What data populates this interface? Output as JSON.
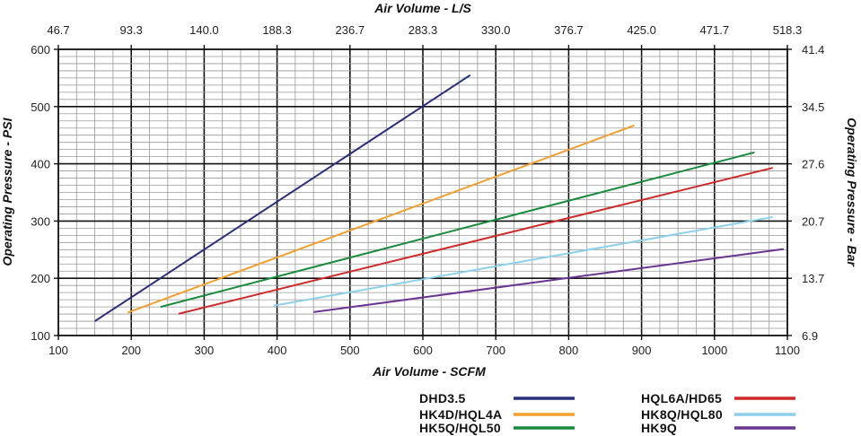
{
  "chart_data": {
    "type": "line",
    "x_bottom": {
      "label": "Air Volume - SCFM",
      "ticks": [
        "100",
        "200",
        "300",
        "400",
        "500",
        "600",
        "700",
        "800",
        "900",
        "1000",
        "1100"
      ],
      "range": [
        100,
        1100
      ]
    },
    "x_top": {
      "label": "Air Volume - L/S",
      "ticks": [
        "46.7",
        "93.3",
        "140.0",
        "188.3",
        "236.7",
        "283.3",
        "330.0",
        "376.7",
        "425.0",
        "471.7",
        "518.3"
      ]
    },
    "y_left": {
      "label": "Operating Pressure - PSI",
      "ticks": [
        "100",
        "200",
        "300",
        "400",
        "500",
        "600"
      ],
      "range": [
        100,
        600
      ]
    },
    "y_right": {
      "label": "Operating Pressure - Bar",
      "ticks": [
        "6.9",
        "13.7",
        "20.7",
        "27.6",
        "34.5",
        "41.4"
      ]
    },
    "grid": true,
    "legend_position": "bottom-right",
    "series": [
      {
        "name": "DHD3.5",
        "color": "#2b2f7a",
        "x": [
          150,
          665
        ],
        "y": [
          125,
          555
        ]
      },
      {
        "name": "HK4D/HQL4A",
        "color": "#f0a030",
        "x": [
          195,
          890
        ],
        "y": [
          140,
          467
        ]
      },
      {
        "name": "HK5Q/HQL50",
        "color": "#1a8a3c",
        "x": [
          240,
          1055
        ],
        "y": [
          150,
          420
        ]
      },
      {
        "name": "HQL6A/HD65",
        "color": "#cf2a2a",
        "x": [
          265,
          1080
        ],
        "y": [
          138,
          393
        ]
      },
      {
        "name": "HK8Q/HQL80",
        "color": "#8dd0ea",
        "x": [
          395,
          1080
        ],
        "y": [
          152,
          307
        ]
      },
      {
        "name": "HK9Q",
        "color": "#6a3592",
        "x": [
          450,
          1095
        ],
        "y": [
          141,
          251
        ]
      }
    ]
  }
}
